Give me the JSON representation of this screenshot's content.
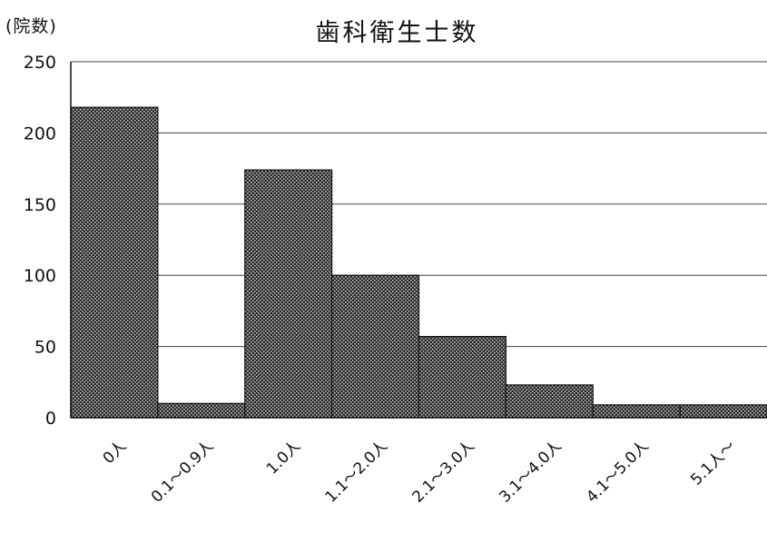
{
  "chart_data": {
    "type": "bar",
    "title": "歯科衛生士数",
    "ylabel": "(院数)",
    "xlabel": "",
    "categories": [
      "0人",
      "0.1～0.9人",
      "1.0人",
      "1.1～2.0人",
      "2.1～3.0人",
      "3.1～4.0人",
      "4.1～5.0人",
      "5.1人～"
    ],
    "values": [
      218,
      10,
      174,
      100,
      57,
      23,
      9,
      9
    ],
    "ylim": [
      0,
      250
    ],
    "yticks": [
      0,
      50,
      100,
      150,
      200,
      250
    ],
    "grid": true,
    "legend": "none",
    "bar_color": "#555555"
  }
}
